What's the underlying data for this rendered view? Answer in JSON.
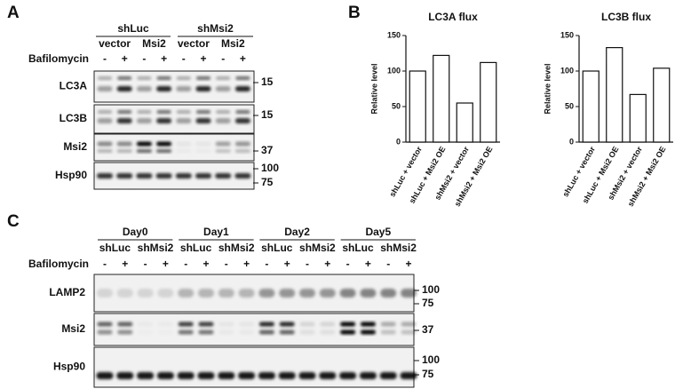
{
  "panels": {
    "a": "A",
    "b": "B",
    "c": "C"
  },
  "blot_a": {
    "groups": [
      "shLuc",
      "shMsi2"
    ],
    "conditions": [
      "vector",
      "Msi2",
      "vector",
      "Msi2"
    ],
    "treatment": "Bafilomycin",
    "signs": [
      "-",
      "+",
      "-",
      "+",
      "-",
      "+",
      "-",
      "+"
    ],
    "rows": [
      "LC3A",
      "LC3B",
      "Msi2",
      "Hsp90"
    ],
    "markers": [
      "15",
      "15",
      "37",
      "100",
      "75"
    ]
  },
  "chart_data": [
    {
      "type": "bar",
      "title": "LC3A flux",
      "y_label": "Relative level",
      "categories": [
        "shLuc + vector",
        "shLuc + Msi2 OE",
        "shMsi2 + vector",
        "shMsi2 + Msi2 OE"
      ],
      "values": [
        100,
        122,
        55,
        112
      ],
      "color": "#ffffff",
      "ylim": [
        0,
        150
      ],
      "yticks": [
        0,
        50,
        100,
        150
      ]
    },
    {
      "type": "bar",
      "title": "LC3B flux",
      "y_label": "Relative level",
      "categories": [
        "shLuc + vector",
        "shLuc + Msi2 OE",
        "shMsi2 + vector",
        "shMsi2 + Msi2 OE"
      ],
      "values": [
        100,
        133,
        67,
        104
      ],
      "color": "#ffffff",
      "ylim": [
        0,
        150
      ],
      "yticks": [
        0,
        50,
        100,
        150
      ]
    }
  ],
  "blot_c": {
    "days": [
      "Day0",
      "Day1",
      "Day2",
      "Day5"
    ],
    "groups": [
      "shLuc",
      "shMsi2",
      "shLuc",
      "shMsi2",
      "shLuc",
      "shMsi2",
      "shLuc",
      "shMsi2"
    ],
    "treatment": "Bafilomycin",
    "signs": [
      "-",
      "+",
      "-",
      "+",
      "-",
      "+",
      "-",
      "+",
      "-",
      "+",
      "-",
      "+",
      "-",
      "+",
      "-",
      "+"
    ],
    "rows": [
      "LAMP2",
      "Msi2",
      "Hsp90"
    ],
    "markers": [
      "100",
      "75",
      "37",
      "100",
      "75"
    ]
  }
}
